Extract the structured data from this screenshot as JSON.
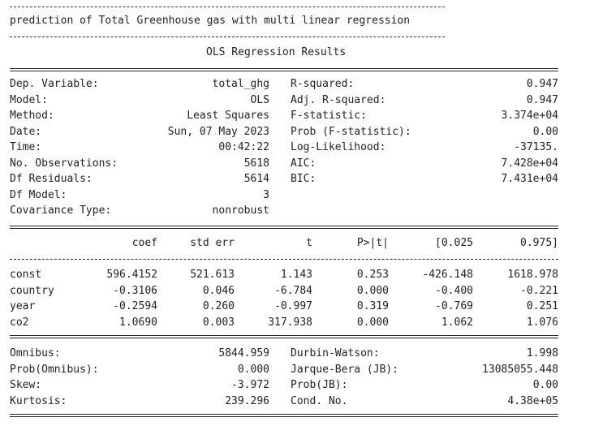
{
  "heading": {
    "title": "prediction of Total Greenhouse gas with multi linear regression",
    "subtitle": "OLS Regression Results"
  },
  "summary_left": [
    {
      "label": "Dep. Variable:",
      "value": "total_ghg"
    },
    {
      "label": "Model:",
      "value": "OLS"
    },
    {
      "label": "Method:",
      "value": "Least Squares"
    },
    {
      "label": "Date:",
      "value": "Sun, 07 May 2023"
    },
    {
      "label": "Time:",
      "value": "00:42:22"
    },
    {
      "label": "No. Observations:",
      "value": "5618"
    },
    {
      "label": "Df Residuals:",
      "value": "5614"
    },
    {
      "label": "Df Model:",
      "value": "3"
    },
    {
      "label": "Covariance Type:",
      "value": "nonrobust"
    }
  ],
  "summary_right": [
    {
      "label": "R-squared:",
      "value": "0.947"
    },
    {
      "label": "Adj. R-squared:",
      "value": "0.947"
    },
    {
      "label": "F-statistic:",
      "value": "3.374e+04"
    },
    {
      "label": "Prob (F-statistic):",
      "value": "0.00"
    },
    {
      "label": "Log-Likelihood:",
      "value": "-37135."
    },
    {
      "label": "AIC:",
      "value": "7.428e+04"
    },
    {
      "label": "BIC:",
      "value": "7.431e+04"
    }
  ],
  "coef_table": {
    "headers": [
      "coef",
      "std err",
      "t",
      "P>|t|",
      "[0.025",
      "0.975]"
    ],
    "rows": [
      {
        "name": "const",
        "values": [
          "596.4152",
          "521.613",
          "1.143",
          "0.253",
          "-426.148",
          "1618.978"
        ]
      },
      {
        "name": "country",
        "values": [
          "-0.3106",
          "0.046",
          "-6.784",
          "0.000",
          "-0.400",
          "-0.221"
        ]
      },
      {
        "name": "year",
        "values": [
          "-0.2594",
          "0.260",
          "-0.997",
          "0.319",
          "-0.769",
          "0.251"
        ]
      },
      {
        "name": "co2",
        "values": [
          "1.0690",
          "0.003",
          "317.938",
          "0.000",
          "1.062",
          "1.076"
        ]
      }
    ]
  },
  "diag_left": [
    {
      "label": "Omnibus:",
      "value": "5844.959"
    },
    {
      "label": "Prob(Omnibus):",
      "value": "0.000"
    },
    {
      "label": "Skew:",
      "value": "-3.972"
    },
    {
      "label": "Kurtosis:",
      "value": "239.296"
    }
  ],
  "diag_right": [
    {
      "label": "Durbin-Watson:",
      "value": "1.998"
    },
    {
      "label": "Jarque-Bera (JB):",
      "value": "13085055.448"
    },
    {
      "label": "Prob(JB):",
      "value": "0.00"
    },
    {
      "label": "Cond. No.",
      "value": "4.38e+05"
    }
  ]
}
